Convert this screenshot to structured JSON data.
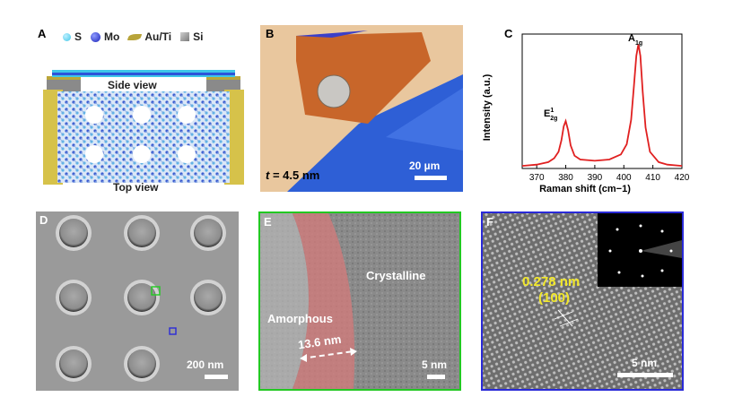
{
  "panels": {
    "A": {
      "label": "A",
      "legend": [
        {
          "name": "S",
          "color": "#3ec6e8"
        },
        {
          "name": "Mo",
          "color": "#2233cc"
        },
        {
          "name": "Au/Ti",
          "color": "#b8a43a"
        },
        {
          "name": "Si",
          "color": "#9a9a9a"
        }
      ],
      "side_view": "Side view",
      "top_view": "Top view"
    },
    "B": {
      "label": "B",
      "thickness_symbol": "t",
      "thickness_value": " = 4.5 nm",
      "scale": "20 µm"
    },
    "C": {
      "label": "C",
      "peak1_base": "E",
      "peak1_sup": "1",
      "peak1_sub": "2g",
      "peak2_base": "A",
      "peak2_sub": "1g"
    },
    "D": {
      "label": "D",
      "scale": "200 nm"
    },
    "E": {
      "label": "E",
      "crystalline": "Crystalline",
      "amorphous": "Amorphous",
      "width": "13.6 nm",
      "scale": "5 nm"
    },
    "F": {
      "label": "F",
      "spacing": "0.278 nm",
      "plane": "(100)",
      "scale": "5 nm"
    }
  },
  "chart_data": {
    "type": "line",
    "title": "",
    "xlabel": "Raman shift (cm−1)",
    "ylabel": "Intensity (a.u.)",
    "xlim": [
      365,
      420
    ],
    "ylim": [
      0,
      1.05
    ],
    "x_ticks": [
      "370",
      "380",
      "390",
      "400",
      "410",
      "420"
    ],
    "grid": false,
    "series": [
      {
        "color": "#e02020",
        "x": [
          365,
          370,
          374,
          376,
          377.5,
          378.5,
          379.3,
          380,
          380.8,
          381.7,
          383,
          385,
          390,
          395,
          399,
          401,
          402.5,
          403.5,
          404.3,
          405,
          405.7,
          406.5,
          407.5,
          409,
          412,
          415,
          420
        ],
        "y": [
          0.02,
          0.03,
          0.05,
          0.08,
          0.13,
          0.22,
          0.33,
          0.37,
          0.3,
          0.18,
          0.1,
          0.07,
          0.06,
          0.07,
          0.11,
          0.19,
          0.38,
          0.65,
          0.88,
          0.97,
          0.88,
          0.6,
          0.32,
          0.13,
          0.05,
          0.03,
          0.02
        ]
      }
    ]
  }
}
